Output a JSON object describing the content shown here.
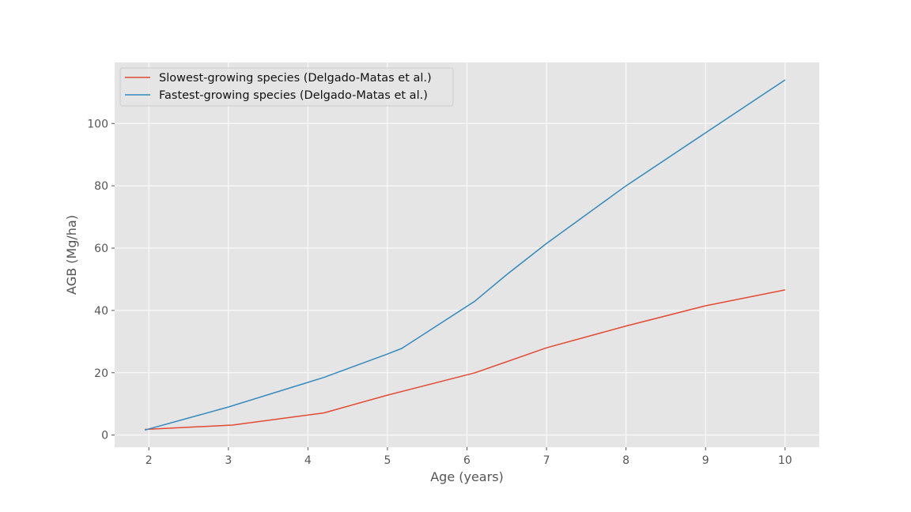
{
  "chart_data": {
    "type": "line",
    "title": "",
    "xlabel": "Age (years)",
    "ylabel": "AGB (Mg/ha)",
    "xlim": [
      1.57,
      10.43
    ],
    "ylim": [
      -3.9,
      119.6
    ],
    "xticks": [
      2,
      3,
      4,
      5,
      6,
      7,
      8,
      9,
      10
    ],
    "yticks": [
      0,
      20,
      40,
      60,
      80,
      100
    ],
    "grid": true,
    "legend_position": "top-left",
    "series": [
      {
        "name": "Slowest-growing species (Delgado-Matas et al.)",
        "color": "#E24A33",
        "x": [
          1.95,
          3.05,
          4.2,
          5.0,
          6.1,
          7.0,
          8.0,
          9.0,
          10.0
        ],
        "y": [
          1.8,
          3.2,
          7.1,
          12.8,
          20.0,
          28.0,
          35.0,
          41.5,
          46.6
        ]
      },
      {
        "name": "Fastest-growing species (Delgado-Matas et al.)",
        "color": "#348ABD",
        "x": [
          1.95,
          3.0,
          4.2,
          5.0,
          5.18,
          6.1,
          6.5,
          7.0,
          8.0,
          9.0,
          10.0
        ],
        "y": [
          1.6,
          9.0,
          18.5,
          26.0,
          27.8,
          43.0,
          51.5,
          61.5,
          80.0,
          97.0,
          114.0
        ]
      }
    ]
  }
}
